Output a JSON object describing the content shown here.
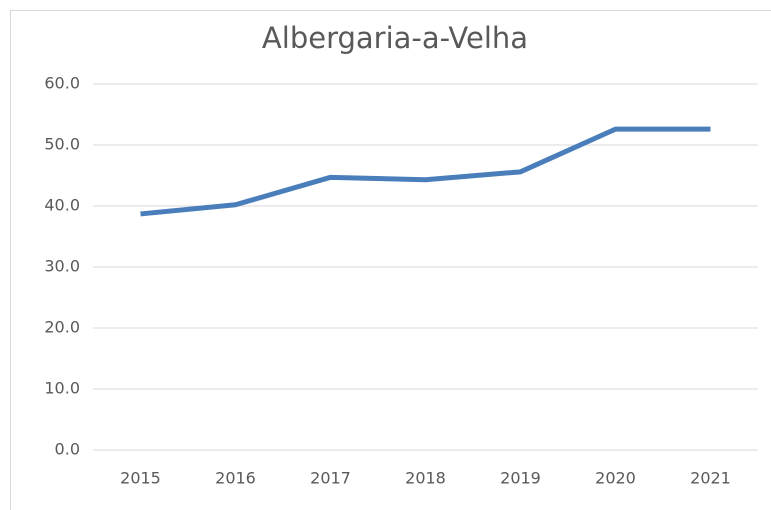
{
  "chart_data": {
    "type": "line",
    "title": "Albergaria-a-Velha",
    "categories": [
      "2015",
      "2016",
      "2017",
      "2018",
      "2019",
      "2020",
      "2021"
    ],
    "series": [
      {
        "name": "Albergaria-a-Velha",
        "color": "#4a7ebb",
        "values": [
          38.7,
          40.2,
          44.7,
          44.3,
          45.6,
          52.6,
          52.6
        ]
      }
    ],
    "ylim": [
      0,
      60
    ],
    "yticks": [
      {
        "value": 0,
        "label": "0.0"
      },
      {
        "value": 10,
        "label": "10.0"
      },
      {
        "value": 20,
        "label": "20.0"
      },
      {
        "value": 30,
        "label": "30.0"
      },
      {
        "value": 40,
        "label": "40.0"
      },
      {
        "value": 50,
        "label": "50.0"
      },
      {
        "value": 60,
        "label": "60.0"
      }
    ],
    "grid": true
  }
}
